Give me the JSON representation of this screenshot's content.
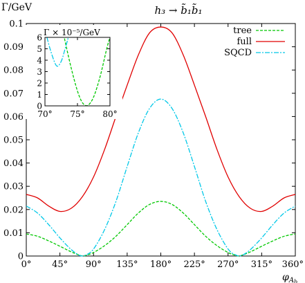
{
  "chart_data": {
    "type": "line",
    "title": "h₃ → b̃₁b̃₁",
    "ylabel": "Γ/GeV",
    "xlabel": "φ_{A_b}",
    "xlim": [
      0,
      360
    ],
    "ylim": [
      0,
      0.1
    ],
    "x_ticks": [
      0,
      45,
      90,
      135,
      180,
      225,
      270,
      315,
      360
    ],
    "x_tick_labels": [
      "0°",
      "45°",
      "90°",
      "135°",
      "180°",
      "225°",
      "270°",
      "315°",
      "360°"
    ],
    "y_ticks": [
      0,
      0.01,
      0.02,
      0.03,
      0.04,
      0.05,
      0.06,
      0.07,
      0.08,
      0.09,
      0.1
    ],
    "y_tick_labels": [
      "0",
      "0.01",
      "0.02",
      "0.03",
      "0.04",
      "0.05",
      "0.06",
      "0.07",
      "0.08",
      "0.09",
      "0.1"
    ],
    "grid": false,
    "legend_position": "top-right",
    "series": [
      {
        "name": "tree",
        "color": "#00c800",
        "dash": "dashed",
        "x": [
          0,
          15,
          30,
          45,
          60,
          70,
          76,
          80,
          90,
          105,
          120,
          135,
          150,
          165,
          180,
          195,
          210,
          225,
          240,
          255,
          270,
          280,
          284,
          290,
          300,
          315,
          330,
          345,
          360
        ],
        "y": [
          0.0095,
          0.0085,
          0.0065,
          0.0042,
          0.0018,
          0.0005,
          0.0,
          0.0003,
          0.0015,
          0.0045,
          0.0085,
          0.0135,
          0.0185,
          0.0222,
          0.0235,
          0.0222,
          0.0185,
          0.0135,
          0.0085,
          0.0045,
          0.0015,
          0.0003,
          0.0,
          0.0005,
          0.0018,
          0.0042,
          0.0065,
          0.0085,
          0.0095
        ]
      },
      {
        "name": "full",
        "color": "#e00000",
        "dash": "solid",
        "x": [
          0,
          15,
          30,
          45,
          60,
          75,
          90,
          105,
          120,
          135,
          150,
          165,
          180,
          195,
          210,
          225,
          240,
          255,
          270,
          285,
          300,
          315,
          330,
          345,
          360
        ],
        "y": [
          0.0265,
          0.025,
          0.0215,
          0.0192,
          0.0205,
          0.0255,
          0.034,
          0.046,
          0.06,
          0.0735,
          0.0865,
          0.096,
          0.0985,
          0.096,
          0.0865,
          0.0735,
          0.06,
          0.046,
          0.034,
          0.0255,
          0.0205,
          0.0192,
          0.0215,
          0.025,
          0.0265
        ]
      },
      {
        "name": "SQCD",
        "color": "#00c8e8",
        "dash": "dash-dot",
        "x": [
          0,
          15,
          30,
          45,
          60,
          72,
          80,
          90,
          105,
          120,
          135,
          150,
          165,
          180,
          195,
          210,
          225,
          240,
          255,
          270,
          280,
          288,
          300,
          315,
          330,
          345,
          360
        ],
        "y": [
          0.0215,
          0.0185,
          0.0135,
          0.0078,
          0.0028,
          0.0002,
          0.0005,
          0.003,
          0.0115,
          0.0235,
          0.0385,
          0.053,
          0.0635,
          0.0675,
          0.0635,
          0.053,
          0.0385,
          0.0235,
          0.0115,
          0.003,
          0.0005,
          0.0002,
          0.0028,
          0.0078,
          0.0135,
          0.0185,
          0.0215
        ]
      }
    ],
    "inset": {
      "ylabel": "Γ × 10⁻⁵/GeV",
      "xlim": [
        70,
        80
      ],
      "ylim": [
        0,
        6
      ],
      "x_ticks": [
        70,
        75,
        80
      ],
      "x_tick_labels": [
        "70°",
        "75°",
        "80°"
      ],
      "y_ticks": [
        0,
        1,
        2,
        3,
        4,
        5,
        6
      ],
      "y_tick_labels": [
        "0",
        "1",
        "2",
        "3",
        "4",
        "5",
        "6"
      ],
      "series": [
        {
          "name": "tree",
          "x": [
            73,
            74,
            75,
            75.8,
            76.6,
            77.5,
            78.5,
            79.5,
            80
          ],
          "y": [
            5.9,
            3.4,
            1.3,
            0.25,
            0.05,
            0.8,
            2.6,
            5.0,
            6.0
          ]
        },
        {
          "name": "SQCD",
          "x": [
            70.3,
            71,
            71.8,
            72.5,
            73.1,
            73.6
          ],
          "y": [
            6.0,
            4.6,
            3.5,
            3.9,
            5.0,
            6.0
          ]
        }
      ]
    }
  }
}
